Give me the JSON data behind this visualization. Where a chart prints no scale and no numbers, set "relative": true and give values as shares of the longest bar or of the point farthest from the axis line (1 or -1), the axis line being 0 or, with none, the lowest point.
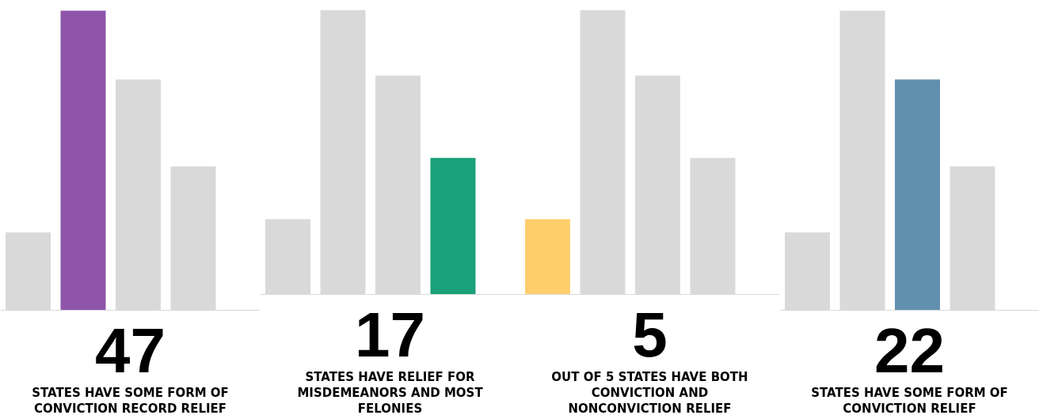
{
  "chart_data": [
    {
      "type": "bar",
      "relative": true,
      "title": "47",
      "subtitle": "STATES HAVE SOME FORM OF CONVICTION RECORD RELIEF",
      "categories": [
        null,
        null,
        null,
        null
      ],
      "values": [
        0.26,
        1,
        0.77,
        0.48
      ],
      "colors": [
        "#d9d9d9",
        "#8e55aa",
        "#d9d9d9",
        "#d9d9d9"
      ],
      "grid": false,
      "legend": false
    },
    {
      "type": "bar",
      "relative": true,
      "title": "17",
      "subtitle": "STATES HAVE RELIEF FOR MISDEMEANORS AND MOST FELONIES",
      "categories": [
        null,
        null,
        null,
        null
      ],
      "values": [
        0.265,
        1,
        0.77,
        0.48
      ],
      "colors": [
        "#d9d9d9",
        "#d9d9d9",
        "#d9d9d9",
        "#1ba17a"
      ],
      "grid": false,
      "legend": false
    },
    {
      "type": "bar",
      "relative": true,
      "title": "5",
      "subtitle": "OUT OF 5 STATES HAVE BOTH CONVICTION AND NONCONVICTION RELIEF",
      "categories": [
        null,
        null,
        null,
        null
      ],
      "values": [
        0.265,
        1,
        0.77,
        0.48
      ],
      "colors": [
        "#ffcf6e",
        "#d9d9d9",
        "#d9d9d9",
        "#d9d9d9"
      ],
      "grid": false,
      "legend": false
    },
    {
      "type": "bar",
      "relative": true,
      "title": "22",
      "subtitle": "STATES HAVE SOME FORM OF CONVICTION RELIEF",
      "categories": [
        null,
        null,
        null,
        null
      ],
      "values": [
        0.26,
        1,
        0.77,
        0.48
      ],
      "colors": [
        "#d9d9d9",
        "#d9d9d9",
        "#6190ae",
        "#d9d9d9"
      ],
      "grid": false,
      "legend": false
    }
  ]
}
